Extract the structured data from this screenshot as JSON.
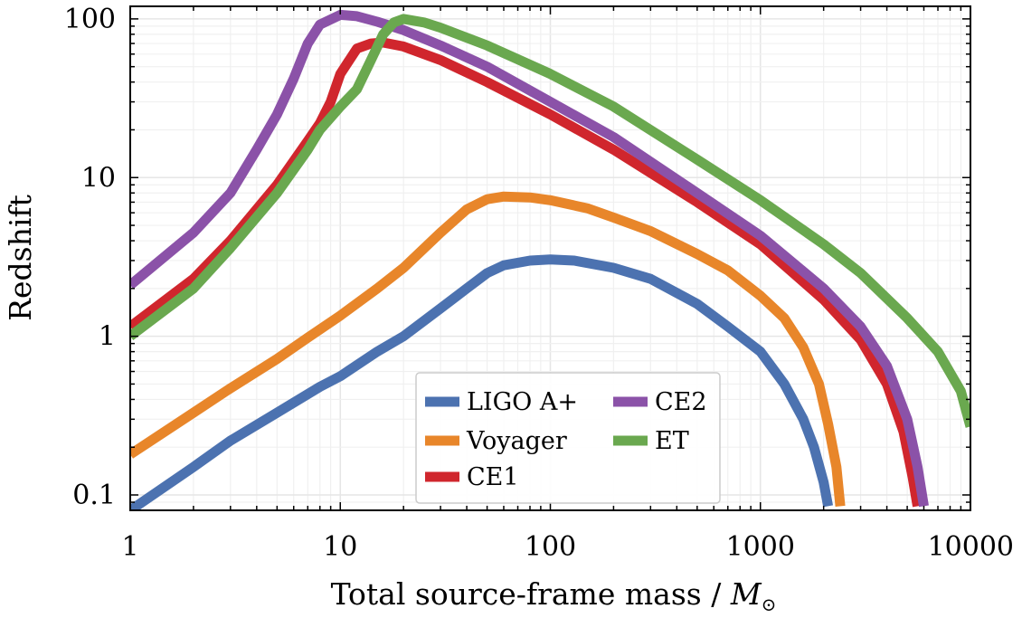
{
  "chart_data": {
    "type": "line",
    "title": "",
    "xlabel": "Total source-frame mass / ",
    "xlabel_symbol": "M",
    "xlabel_subscript": "⊙",
    "ylabel": "Redshift",
    "xscale": "log",
    "yscale": "log",
    "xlim": [
      1,
      10000
    ],
    "ylim": [
      0.08,
      120
    ],
    "grid": true,
    "legend": {
      "placement": "lower-center",
      "columns": 2
    },
    "x_ticks": [
      {
        "value": 1,
        "label": "1"
      },
      {
        "value": 10,
        "label": "10"
      },
      {
        "value": 100,
        "label": "100"
      },
      {
        "value": 1000,
        "label": "1000"
      },
      {
        "value": 10000,
        "label": "10000"
      }
    ],
    "y_ticks": [
      {
        "value": 0.1,
        "label": "0.1"
      },
      {
        "value": 1,
        "label": "1"
      },
      {
        "value": 10,
        "label": "10"
      },
      {
        "value": 100,
        "label": "100"
      }
    ],
    "series": [
      {
        "name": "LIGO A+",
        "color": "#4C72B0",
        "points": [
          [
            1,
            0.08
          ],
          [
            2,
            0.15
          ],
          [
            3,
            0.22
          ],
          [
            5,
            0.33
          ],
          [
            8,
            0.48
          ],
          [
            10,
            0.56
          ],
          [
            15,
            0.8
          ],
          [
            20,
            1.0
          ],
          [
            30,
            1.5
          ],
          [
            40,
            2.0
          ],
          [
            50,
            2.5
          ],
          [
            60,
            2.8
          ],
          [
            80,
            3.0
          ],
          [
            100,
            3.05
          ],
          [
            130,
            3.0
          ],
          [
            200,
            2.7
          ],
          [
            300,
            2.3
          ],
          [
            500,
            1.6
          ],
          [
            700,
            1.15
          ],
          [
            1000,
            0.8
          ],
          [
            1300,
            0.5
          ],
          [
            1600,
            0.3
          ],
          [
            1800,
            0.2
          ],
          [
            2000,
            0.12
          ],
          [
            2100,
            0.085
          ]
        ]
      },
      {
        "name": "Voyager",
        "color": "#E8862A",
        "points": [
          [
            1,
            0.18
          ],
          [
            2,
            0.33
          ],
          [
            3,
            0.47
          ],
          [
            5,
            0.72
          ],
          [
            7,
            0.98
          ],
          [
            10,
            1.35
          ],
          [
            15,
            2.0
          ],
          [
            20,
            2.7
          ],
          [
            30,
            4.5
          ],
          [
            40,
            6.3
          ],
          [
            50,
            7.3
          ],
          [
            60,
            7.6
          ],
          [
            80,
            7.5
          ],
          [
            100,
            7.2
          ],
          [
            150,
            6.4
          ],
          [
            200,
            5.6
          ],
          [
            300,
            4.6
          ],
          [
            500,
            3.3
          ],
          [
            700,
            2.6
          ],
          [
            1000,
            1.8
          ],
          [
            1300,
            1.3
          ],
          [
            1600,
            0.85
          ],
          [
            1900,
            0.5
          ],
          [
            2100,
            0.28
          ],
          [
            2300,
            0.15
          ],
          [
            2400,
            0.085
          ]
        ]
      },
      {
        "name": "CE1",
        "color": "#D0262D",
        "points": [
          [
            1,
            1.15
          ],
          [
            2,
            2.3
          ],
          [
            3,
            4.0
          ],
          [
            5,
            9.0
          ],
          [
            7,
            17
          ],
          [
            8,
            22
          ],
          [
            9,
            30
          ],
          [
            10,
            45
          ],
          [
            12,
            65
          ],
          [
            14,
            70
          ],
          [
            16,
            71
          ],
          [
            20,
            67
          ],
          [
            30,
            55
          ],
          [
            50,
            40
          ],
          [
            100,
            25
          ],
          [
            200,
            15
          ],
          [
            500,
            7
          ],
          [
            1000,
            3.8
          ],
          [
            2000,
            1.7
          ],
          [
            3000,
            0.95
          ],
          [
            4000,
            0.5
          ],
          [
            4800,
            0.25
          ],
          [
            5300,
            0.13
          ],
          [
            5600,
            0.085
          ]
        ]
      },
      {
        "name": "CE2",
        "color": "#8B52A8",
        "points": [
          [
            1,
            2.1
          ],
          [
            2,
            4.5
          ],
          [
            3,
            8.0
          ],
          [
            4,
            15
          ],
          [
            5,
            25
          ],
          [
            6,
            42
          ],
          [
            7,
            70
          ],
          [
            8,
            92
          ],
          [
            10,
            106
          ],
          [
            12,
            104
          ],
          [
            15,
            96
          ],
          [
            20,
            85
          ],
          [
            30,
            68
          ],
          [
            50,
            50
          ],
          [
            100,
            30
          ],
          [
            200,
            18
          ],
          [
            500,
            8
          ],
          [
            1000,
            4.3
          ],
          [
            2000,
            2.0
          ],
          [
            3000,
            1.15
          ],
          [
            4000,
            0.65
          ],
          [
            5000,
            0.3
          ],
          [
            5600,
            0.15
          ],
          [
            6000,
            0.085
          ]
        ]
      },
      {
        "name": "ET",
        "color": "#6AA84F",
        "points": [
          [
            1,
            1.0
          ],
          [
            2,
            2.0
          ],
          [
            3,
            3.6
          ],
          [
            5,
            8.0
          ],
          [
            7,
            15
          ],
          [
            8,
            20
          ],
          [
            10,
            28
          ],
          [
            12,
            36
          ],
          [
            14,
            55
          ],
          [
            16,
            80
          ],
          [
            18,
            95
          ],
          [
            20,
            100
          ],
          [
            25,
            95
          ],
          [
            30,
            88
          ],
          [
            50,
            68
          ],
          [
            100,
            45
          ],
          [
            200,
            28
          ],
          [
            500,
            13
          ],
          [
            1000,
            7.2
          ],
          [
            2000,
            3.8
          ],
          [
            3000,
            2.5
          ],
          [
            5000,
            1.3
          ],
          [
            7000,
            0.8
          ],
          [
            9000,
            0.45
          ],
          [
            10000,
            0.27
          ]
        ]
      }
    ]
  }
}
